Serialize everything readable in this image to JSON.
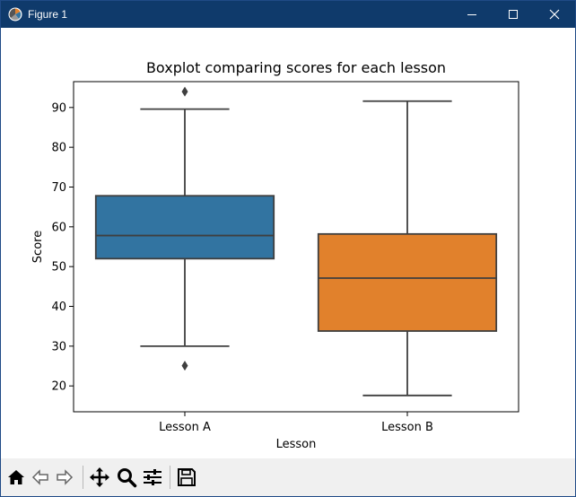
{
  "window": {
    "title": "Figure 1",
    "accent": "#0f3a6b"
  },
  "toolbar": {
    "icons": [
      "home-icon",
      "back-icon",
      "forward-icon",
      "pan-icon",
      "zoom-icon",
      "configure-subplots-icon",
      "save-icon"
    ]
  },
  "chart_data": {
    "type": "boxplot",
    "title": "Boxplot comparing scores for each lesson",
    "xlabel": "Lesson",
    "ylabel": "Score",
    "categories": [
      "Lesson A",
      "Lesson B"
    ],
    "ylim": [
      13.5,
      96.5
    ],
    "yticks": [
      20,
      30,
      40,
      50,
      60,
      70,
      80,
      90
    ],
    "grid": false,
    "boxes": [
      {
        "label": "Lesson A",
        "color": "#3274a1",
        "whisker_low": 30,
        "q1": 52,
        "median": 57.8,
        "q3": 67.8,
        "whisker_high": 89.6,
        "outliers": [
          94,
          25.1
        ]
      },
      {
        "label": "Lesson B",
        "color": "#e1812c",
        "whisker_low": 17.6,
        "q1": 33.8,
        "median": 47.1,
        "q3": 58.2,
        "whisker_high": 91.6,
        "outliers": []
      }
    ]
  }
}
